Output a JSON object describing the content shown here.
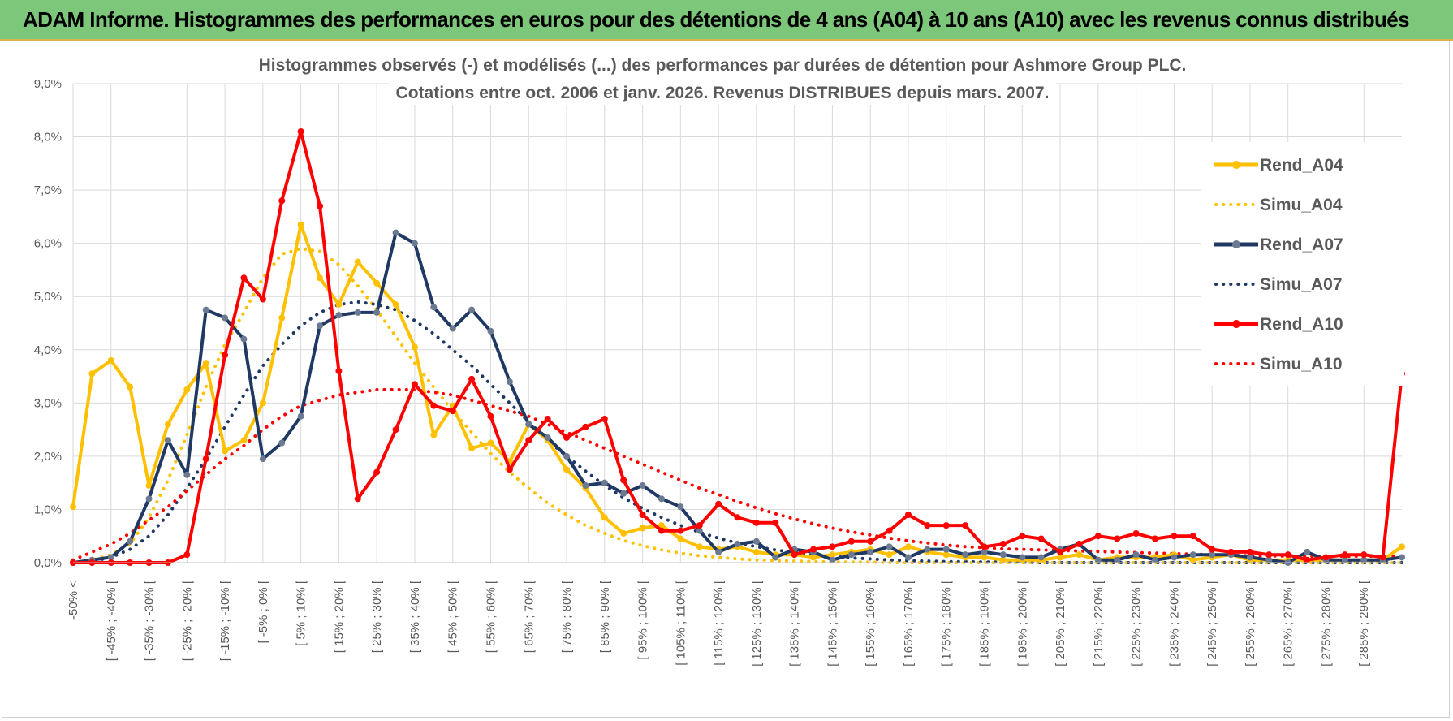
{
  "header": {
    "title": "ADAM Informe. Histogrammes des performances en euros pour des détentions de 4 ans (A04) à 10 ans (A10) avec les revenus connus distribués"
  },
  "chart_data": {
    "type": "line",
    "title": "Histogrammes observés (-) et modélisés (...) des performances par durées de détention pour Ashmore Group PLC.",
    "subtitle": "Cotations entre oct. 2006 et janv. 2026. Revenus DISTRIBUES depuis mars. 2007.",
    "ylim": [
      0,
      9
    ],
    "y_ticks": [
      "0,0%",
      "1,0%",
      "2,0%",
      "3,0%",
      "4,0%",
      "5,0%",
      "6,0%",
      "7,0%",
      "8,0%",
      "9,0%"
    ],
    "x_tick_labels": [
      "-50% <",
      "[ -45% ; -40% [",
      "[ -35% ; -30% [",
      "[ -25% ; -20% [",
      "[ -15% ; -10% [",
      "[ -5% ; 0% [",
      "[ 5% ; 10% [",
      "[ 15% ; 20% [",
      "[ 25% ; 30% [",
      "[ 35% ; 40% [",
      "[ 45% ; 50% [",
      "[ 55% ; 60% [",
      "[ 65% ; 70% [",
      "[ 75% ; 80% [",
      "[ 85% ; 90% [",
      "[ 95% ; 100% [",
      "[ 105% ; 110% [",
      "[ 115% ; 120% [",
      "[ 125% ; 130% [",
      "[ 135% ; 140% [",
      "[ 145% ; 150% [",
      "[ 155% ; 160% [",
      "[ 165% ; 170% [",
      "[ 175% ; 180% [",
      "[ 185% ; 190% [",
      "[ 195% ; 200% [",
      "[ 205% ; 210% [",
      "[ 215% ; 220% [",
      "[ 225% ; 230% [",
      "[ 235% ; 240% [",
      "[ 245% ; 250% [",
      "[ 255% ; 260% [",
      "[ 265% ; 270% [",
      "[ 275% ; 280% [",
      "[ 285% ; 290% ["
    ],
    "n_bins": 71,
    "series": [
      {
        "name": "Rend_A04",
        "style": "solid",
        "color": "#ffc000",
        "values": [
          1.05,
          3.55,
          3.8,
          3.3,
          1.45,
          2.6,
          3.25,
          3.75,
          2.1,
          2.3,
          3.0,
          4.6,
          6.35,
          5.35,
          4.85,
          5.65,
          5.25,
          4.85,
          4.05,
          2.4,
          2.95,
          2.15,
          2.25,
          1.9,
          2.6,
          2.3,
          1.75,
          1.4,
          0.85,
          0.55,
          0.65,
          0.7,
          0.45,
          0.3,
          0.25,
          0.3,
          0.2,
          0.15,
          0.15,
          0.1,
          0.15,
          0.2,
          0.25,
          0.15,
          0.3,
          0.2,
          0.15,
          0.1,
          0.1,
          0.05,
          0.05,
          0.05,
          0.1,
          0.15,
          0.05,
          0.1,
          0.1,
          0.1,
          0.15,
          0.05,
          0.1,
          0.15,
          0.05,
          0.05,
          0.05,
          0.05,
          0.05,
          0.05,
          0.05,
          0.05,
          0.3
        ]
      },
      {
        "name": "Simu_A04",
        "style": "dotted",
        "color": "#ffc000",
        "values": [
          0.0,
          0.05,
          0.15,
          0.35,
          0.85,
          1.55,
          2.4,
          3.3,
          4.1,
          4.7,
          5.35,
          5.8,
          5.9,
          5.85,
          5.6,
          5.2,
          4.75,
          4.25,
          3.75,
          3.3,
          2.85,
          2.45,
          2.05,
          1.7,
          1.4,
          1.12,
          0.9,
          0.7,
          0.55,
          0.42,
          0.32,
          0.24,
          0.18,
          0.13,
          0.1,
          0.07,
          0.05,
          0.04,
          0.03,
          0.02,
          0.01,
          0.01,
          0.01,
          0.0,
          0.0,
          0.0,
          0.0,
          0.0,
          0.0,
          0.0,
          0.0,
          0.0,
          0.0,
          0.0,
          0.0,
          0.0,
          0.0,
          0.0,
          0.0,
          0.0,
          0.0,
          0.0,
          0.0,
          0.0,
          0.0,
          0.0,
          0.0,
          0.0,
          0.0,
          0.0,
          0.0
        ]
      },
      {
        "name": "Rend_A07",
        "style": "solid",
        "color": "#1f3864",
        "values": [
          0.0,
          0.05,
          0.1,
          0.4,
          1.2,
          2.3,
          1.65,
          4.75,
          4.6,
          4.2,
          1.95,
          2.25,
          2.75,
          4.45,
          4.65,
          4.7,
          4.7,
          6.2,
          6.0,
          4.8,
          4.4,
          4.75,
          4.35,
          3.4,
          2.6,
          2.35,
          2.0,
          1.45,
          1.5,
          1.3,
          1.45,
          1.2,
          1.05,
          0.6,
          0.2,
          0.35,
          0.4,
          0.1,
          0.25,
          0.2,
          0.05,
          0.15,
          0.2,
          0.3,
          0.1,
          0.25,
          0.25,
          0.15,
          0.2,
          0.15,
          0.1,
          0.1,
          0.25,
          0.35,
          0.05,
          0.05,
          0.15,
          0.05,
          0.1,
          0.15,
          0.15,
          0.15,
          0.1,
          0.05,
          0.0,
          0.2,
          0.05,
          0.05,
          0.05,
          0.05,
          0.1
        ]
      },
      {
        "name": "Simu_A07",
        "style": "dotted",
        "color": "#1f3864",
        "values": [
          0.0,
          0.02,
          0.1,
          0.25,
          0.5,
          0.9,
          1.4,
          1.95,
          2.55,
          3.15,
          3.7,
          4.1,
          4.45,
          4.7,
          4.85,
          4.9,
          4.85,
          4.75,
          4.55,
          4.3,
          4.0,
          3.7,
          3.35,
          3.0,
          2.65,
          2.3,
          2.0,
          1.72,
          1.45,
          1.22,
          1.02,
          0.85,
          0.7,
          0.57,
          0.46,
          0.37,
          0.3,
          0.24,
          0.19,
          0.15,
          0.12,
          0.09,
          0.07,
          0.05,
          0.04,
          0.03,
          0.02,
          0.02,
          0.01,
          0.01,
          0.01,
          0.0,
          0.0,
          0.0,
          0.0,
          0.0,
          0.0,
          0.0,
          0.0,
          0.0,
          0.0,
          0.0,
          0.0,
          0.0,
          0.0,
          0.0,
          0.0,
          0.0,
          0.0,
          0.0,
          0.0
        ]
      },
      {
        "name": "Rend_A10",
        "style": "solid",
        "color": "#ff0000",
        "values": [
          0.0,
          0.0,
          0.0,
          0.0,
          0.0,
          0.0,
          0.15,
          1.95,
          3.9,
          5.35,
          4.95,
          6.8,
          8.1,
          6.7,
          3.6,
          1.2,
          1.7,
          2.5,
          3.35,
          2.95,
          2.85,
          3.45,
          2.75,
          1.75,
          2.3,
          2.7,
          2.35,
          2.55,
          2.7,
          1.55,
          0.9,
          0.6,
          0.6,
          0.7,
          1.1,
          0.85,
          0.75,
          0.75,
          0.15,
          0.25,
          0.3,
          0.4,
          0.4,
          0.6,
          0.9,
          0.7,
          0.7,
          0.7,
          0.3,
          0.35,
          0.5,
          0.45,
          0.2,
          0.35,
          0.5,
          0.45,
          0.55,
          0.45,
          0.5,
          0.5,
          0.25,
          0.2,
          0.2,
          0.15,
          0.15,
          0.05,
          0.1,
          0.15,
          0.15,
          0.1,
          3.55
        ]
      },
      {
        "name": "Simu_A10",
        "style": "dotted",
        "color": "#ff0000",
        "values": [
          0.05,
          0.2,
          0.35,
          0.55,
          0.8,
          1.05,
          1.35,
          1.65,
          1.95,
          2.2,
          2.5,
          2.75,
          2.95,
          3.05,
          3.15,
          3.2,
          3.25,
          3.25,
          3.25,
          3.2,
          3.15,
          3.05,
          2.95,
          2.85,
          2.75,
          2.6,
          2.45,
          2.3,
          2.15,
          2.0,
          1.85,
          1.7,
          1.55,
          1.4,
          1.28,
          1.15,
          1.03,
          0.92,
          0.82,
          0.73,
          0.65,
          0.58,
          0.52,
          0.46,
          0.41,
          0.37,
          0.33,
          0.3,
          0.28,
          0.26,
          0.25,
          0.24,
          0.23,
          0.22,
          0.21,
          0.2,
          0.19,
          0.18,
          0.17,
          0.16,
          0.15,
          0.14,
          0.13,
          0.13,
          0.12,
          0.12,
          0.12,
          0.12,
          0.12,
          0.12,
          0.12
        ]
      }
    ],
    "legend": {
      "position": "right",
      "entries": [
        "Rend_A04",
        "Simu_A04",
        "Rend_A07",
        "Simu_A07",
        "Rend_A10",
        "Simu_A10"
      ]
    },
    "grid": true
  }
}
